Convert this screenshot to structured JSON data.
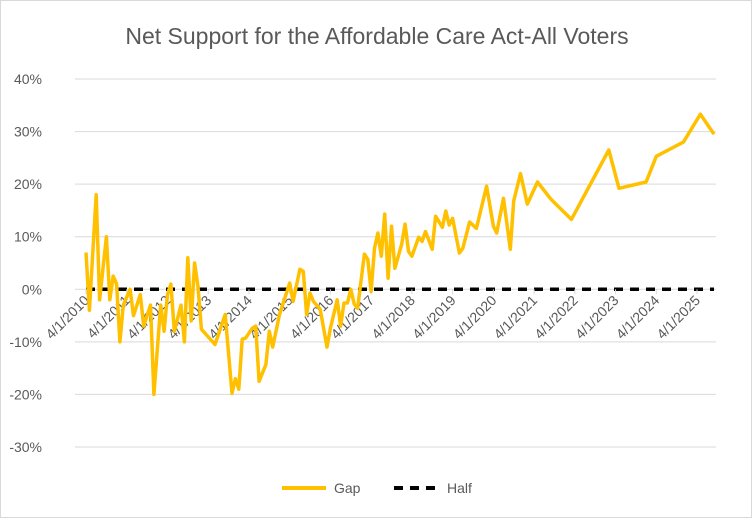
{
  "chart_data": {
    "type": "line",
    "title": "Net Support for the Affordable Care Act-All Voters",
    "xlabel": "",
    "ylabel": "",
    "ylim": [
      -0.3,
      0.4
    ],
    "y_ticks": [
      "40%",
      "30%",
      "20%",
      "10%",
      "0%",
      "-10%",
      "-20%",
      "-30%"
    ],
    "y_tick_values": [
      0.4,
      0.3,
      0.2,
      0.1,
      0,
      -0.1,
      -0.2,
      -0.3
    ],
    "x_ticks": [
      "4/1/2010",
      "4/1/2011",
      "4/1/2012",
      "4/1/2013",
      "4/1/2014",
      "4/1/2015",
      "4/1/2016",
      "4/1/2017",
      "4/1/2018",
      "4/1/2019",
      "4/1/2020",
      "4/1/2021",
      "4/1/2022",
      "4/1/2023",
      "4/1/2024",
      "4/1/2025"
    ],
    "x_tick_dates": [
      "2010-04",
      "2011-04",
      "2012-04",
      "2013-04",
      "2014-04",
      "2015-04",
      "2016-04",
      "2017-04",
      "2018-04",
      "2019-04",
      "2020-04",
      "2021-04",
      "2022-04",
      "2023-04",
      "2024-04",
      "2025-04"
    ],
    "xlim": [
      "2010-04",
      "2025-09"
    ],
    "grid": true,
    "legend": "bottom",
    "series": [
      {
        "name": "Gap",
        "color": "#FFC000",
        "style": "solid",
        "x": [
          "2010-04",
          "2010-05",
          "2010-07",
          "2010-08",
          "2010-10",
          "2010-11",
          "2010-12",
          "2011-01",
          "2011-02",
          "2011-03",
          "2011-05",
          "2011-06",
          "2011-08",
          "2011-09",
          "2011-11",
          "2011-12",
          "2012-02",
          "2012-03",
          "2012-04",
          "2012-05",
          "2012-06",
          "2012-08",
          "2012-09",
          "2012-10",
          "2012-11",
          "2012-12",
          "2013-01",
          "2013-02",
          "2013-06",
          "2013-09",
          "2013-11",
          "2013-12",
          "2014-01",
          "2014-02",
          "2014-03",
          "2014-05",
          "2014-06",
          "2014-07",
          "2014-09",
          "2014-10",
          "2014-11",
          "2015-01",
          "2015-04",
          "2015-05",
          "2015-07",
          "2015-08",
          "2015-09",
          "2015-10",
          "2015-11",
          "2016-01",
          "2016-03",
          "2016-04",
          "2016-06",
          "2016-07",
          "2016-08",
          "2016-09",
          "2016-10",
          "2016-11",
          "2016-12",
          "2017-02",
          "2017-03",
          "2017-04",
          "2017-05",
          "2017-06",
          "2017-07",
          "2017-08",
          "2017-09",
          "2017-10",
          "2017-11",
          "2018-01",
          "2018-02",
          "2018-03",
          "2018-04",
          "2018-06",
          "2018-07",
          "2018-08",
          "2018-10",
          "2018-11",
          "2019-01",
          "2019-02",
          "2019-03",
          "2019-04",
          "2019-06",
          "2019-07",
          "2019-09",
          "2019-11",
          "2020-02",
          "2020-04",
          "2020-05",
          "2020-07",
          "2020-09",
          "2020-10",
          "2020-12",
          "2021-02",
          "2021-05",
          "2021-09",
          "2022-03",
          "2023-02",
          "2023-05",
          "2024-01",
          "2024-04",
          "2024-12",
          "2025-05",
          "2025-09"
        ],
        "values": [
          0.07,
          -0.04,
          0.18,
          -0.02,
          0.1,
          -0.02,
          0.025,
          0.01,
          -0.1,
          -0.03,
          0.0,
          -0.05,
          -0.01,
          -0.07,
          -0.03,
          -0.2,
          -0.03,
          -0.08,
          -0.01,
          0.01,
          -0.08,
          -0.03,
          -0.1,
          0.06,
          -0.06,
          0.05,
          0.005,
          -0.076,
          -0.105,
          -0.048,
          -0.198,
          -0.17,
          -0.19,
          -0.095,
          -0.093,
          -0.074,
          -0.07,
          -0.175,
          -0.143,
          -0.08,
          -0.11,
          -0.048,
          0.012,
          -0.023,
          0.038,
          0.034,
          -0.048,
          -0.007,
          -0.023,
          -0.038,
          -0.11,
          -0.074,
          -0.02,
          -0.07,
          -0.026,
          -0.026,
          0.0,
          -0.028,
          -0.036,
          0.067,
          0.057,
          -0.004,
          0.078,
          0.107,
          0.063,
          0.143,
          0.021,
          0.12,
          0.04,
          0.086,
          0.124,
          0.072,
          0.063,
          0.099,
          0.091,
          0.11,
          0.076,
          0.139,
          0.118,
          0.149,
          0.122,
          0.135,
          0.069,
          0.078,
          0.128,
          0.116,
          0.196,
          0.12,
          0.107,
          0.173,
          0.076,
          0.168,
          0.22,
          0.162,
          0.204,
          0.171,
          0.133,
          0.265,
          0.192,
          0.204,
          0.253,
          0.28,
          0.333,
          0.295
        ]
      },
      {
        "name": "Half",
        "color": "#000000",
        "style": "dashed",
        "value": 0
      }
    ]
  }
}
